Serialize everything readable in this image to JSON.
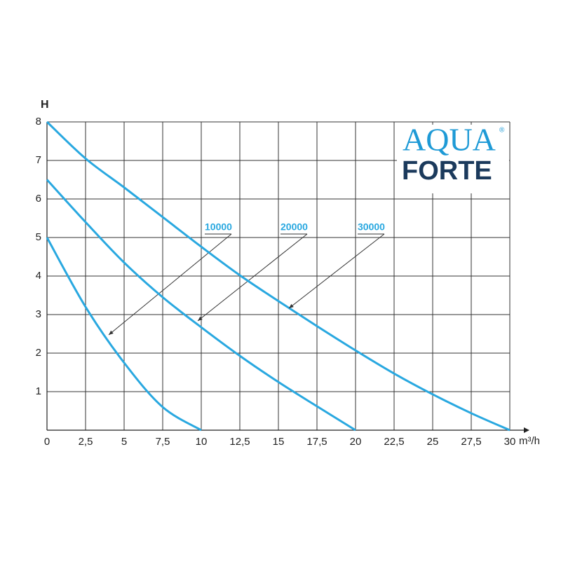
{
  "chart_data": {
    "type": "line",
    "xlabel": "m³/h",
    "ylabel": "H",
    "logo": {
      "top": "AQUA",
      "bottom": "FORTE",
      "mark": "®"
    },
    "xlim": [
      0,
      30
    ],
    "ylim": [
      0,
      8
    ],
    "xticks": [
      0,
      {
        "value": 2.5,
        "label": "2,5"
      },
      5,
      {
        "value": 7.5,
        "label": "7,5"
      },
      10,
      {
        "value": 12.5,
        "label": "12,5"
      },
      15,
      {
        "value": 17.5,
        "label": "17,5"
      },
      20,
      {
        "value": 22.5,
        "label": "22,5"
      },
      25,
      {
        "value": 27.5,
        "label": "27,5"
      },
      30
    ],
    "yticks": [
      1,
      2,
      3,
      4,
      5,
      6,
      7,
      8
    ],
    "grid": true,
    "series": [
      {
        "name": "10000",
        "color": "#29a8e0",
        "x": [
          0,
          2.5,
          5,
          7.5,
          10
        ],
        "values": [
          5,
          3.2,
          1.75,
          0.6,
          0
        ]
      },
      {
        "name": "20000",
        "color": "#29a8e0",
        "x": [
          0,
          2.5,
          5,
          7.5,
          10,
          12.5,
          15,
          17.5,
          20
        ],
        "values": [
          6.5,
          5.4,
          4.35,
          3.45,
          2.67,
          1.93,
          1.25,
          0.62,
          0
        ]
      },
      {
        "name": "30000",
        "color": "#29a8e0",
        "x": [
          0,
          2.5,
          5,
          7.5,
          10,
          12.5,
          15,
          17.5,
          20,
          22.5,
          25,
          27.5,
          30
        ],
        "values": [
          8,
          7.05,
          6.3,
          5.53,
          4.76,
          4.02,
          3.35,
          2.7,
          2.07,
          1.47,
          0.93,
          0.44,
          0
        ]
      }
    ]
  }
}
